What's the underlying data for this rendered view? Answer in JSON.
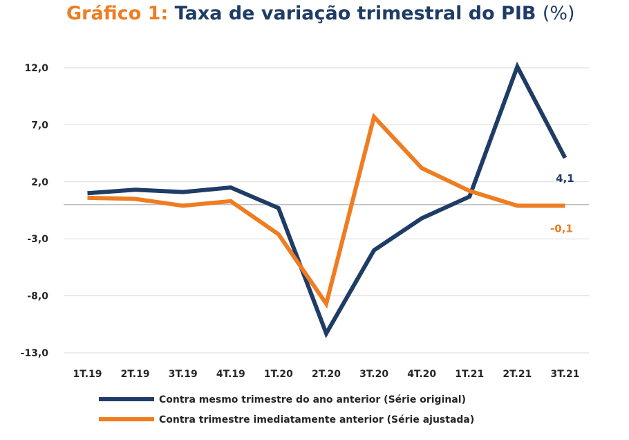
{
  "chart_data": {
    "type": "line",
    "title_prefix": "Gráfico 1:",
    "title": "Taxa de variação trimestral do PIB",
    "title_unit": "(%)",
    "categories": [
      "1T.19",
      "2T.19",
      "3T.19",
      "4T.19",
      "1T.20",
      "2T.20",
      "3T.20",
      "4T.20",
      "1T.21",
      "2T.21",
      "3T.21"
    ],
    "y_ticks": [
      12.0,
      7.0,
      2.0,
      -3.0,
      -8.0,
      -13.0
    ],
    "y_tick_labels": [
      "12,0",
      "7,0",
      "2,0",
      "-3,0",
      "-8,0",
      "-13,0"
    ],
    "ylim": [
      -13,
      12
    ],
    "grid": true,
    "legend_position": "bottom",
    "series": [
      {
        "name": "Contra mesmo trimestre do ano anterior (Série original)",
        "color": "#1f3c66",
        "values": [
          1.0,
          1.3,
          1.1,
          1.5,
          -0.3,
          -11.3,
          -4.0,
          -1.2,
          0.7,
          12.1,
          4.1
        ],
        "end_label": "4,1"
      },
      {
        "name": "Contra trimestre imediatamente anterior (Série ajustada)",
        "color": "#ee7d22",
        "values": [
          0.6,
          0.5,
          -0.1,
          0.3,
          -2.6,
          -8.7,
          7.7,
          3.2,
          1.2,
          -0.1,
          -0.1
        ],
        "end_label": "-0,1"
      }
    ]
  }
}
